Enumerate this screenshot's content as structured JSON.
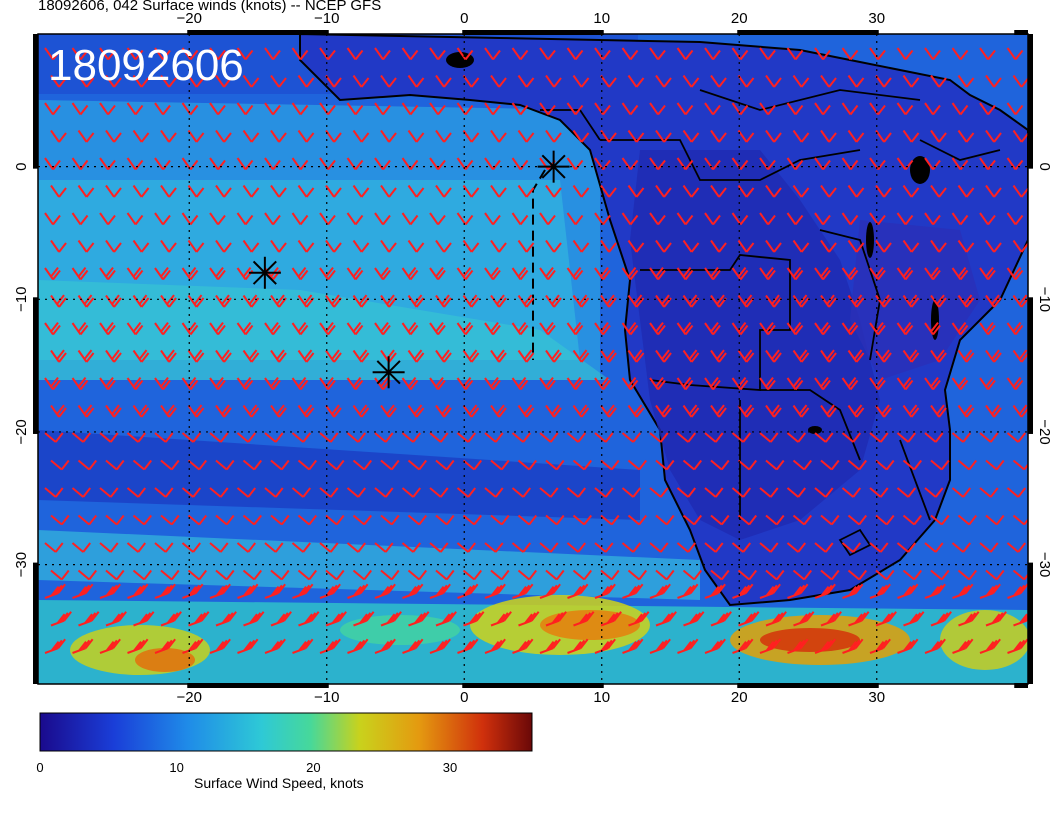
{
  "header": {
    "title": "18092606, 042 Surface winds (knots) -- NCEP GFS",
    "stamp": "18092606"
  },
  "chart_data": {
    "type": "heatmap",
    "title": "18092606, 042 Surface winds (knots) -- NCEP GFS",
    "variable": "Surface wind speed with wind barbs",
    "x_axis": {
      "label": "",
      "range": [
        -31,
        41
      ],
      "ticks": [
        -20,
        -10,
        0,
        10,
        20,
        30
      ],
      "tick_labels": [
        "-20",
        "-10",
        "0",
        "10",
        "20",
        "30"
      ]
    },
    "y_axis": {
      "label": "",
      "range": [
        -39,
        10
      ],
      "ticks": [
        0,
        -10,
        -20,
        -30
      ],
      "tick_labels": [
        "0",
        "-10",
        "-20",
        "-30"
      ]
    },
    "grid": true,
    "markers": [
      {
        "symbol": "asterisk",
        "lon": 6.5,
        "lat": 0.0
      },
      {
        "symbol": "asterisk",
        "lon": -14.5,
        "lat": -8.0
      },
      {
        "symbol": "asterisk",
        "lon": -5.5,
        "lat": -15.5
      }
    ],
    "colorbar": {
      "label": "Surface Wind Speed, knots",
      "range": [
        0,
        36
      ],
      "ticks": [
        0,
        10,
        20,
        30
      ],
      "tick_labels": [
        "0",
        "10",
        "20",
        "30"
      ],
      "colors": [
        "#1a0a8c",
        "#1a3ed8",
        "#1f8be8",
        "#2ec9d6",
        "#47d89a",
        "#c9d21c",
        "#e49a10",
        "#d0300c",
        "#6a0808"
      ]
    }
  }
}
